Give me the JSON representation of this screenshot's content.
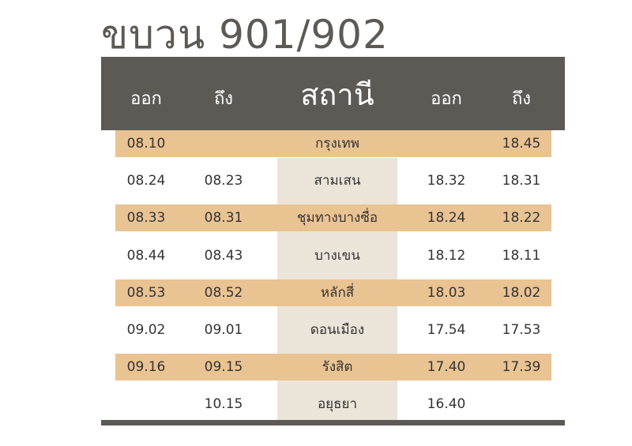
{
  "title": "ขบวน 901/902",
  "headers": [
    "ออก",
    "ถึง",
    "สถานี",
    "ออก",
    "ถึง"
  ],
  "colors": {
    "header": "#5d5954",
    "band": "#eac393",
    "station_column": "#ebe4d9"
  },
  "rows": [
    [
      "08.10",
      "",
      "กรุงเทพ",
      "",
      "18.45"
    ],
    [
      "08.24",
      "08.23",
      "สามเสน",
      "18.32",
      "18.31"
    ],
    [
      "08.33",
      "08.31",
      "ชุมทางบางซื่อ",
      "18.24",
      "18.22"
    ],
    [
      "08.44",
      "08.43",
      "บางเขน",
      "18.12",
      "18.11"
    ],
    [
      "08.53",
      "08.52",
      "หลักสี่",
      "18.03",
      "18.02"
    ],
    [
      "09.02",
      "09.01",
      "ดอนเมือง",
      "17.54",
      "17.53"
    ],
    [
      "09.16",
      "09.15",
      "รังสิต",
      "17.40",
      "17.39"
    ],
    [
      "",
      "10.15",
      "อยุธยา",
      "16.40",
      ""
    ]
  ]
}
